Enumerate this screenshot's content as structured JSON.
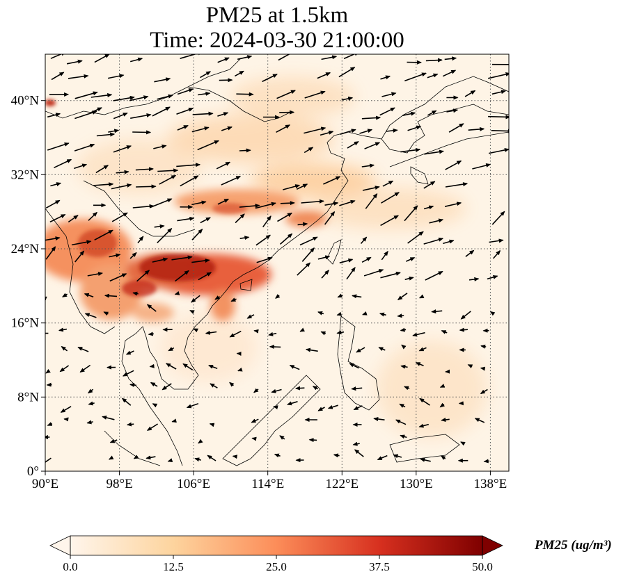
{
  "title": {
    "line1": "PM25 at 1.5km",
    "line2": "Time: 2024-03-30 21:00:00"
  },
  "map": {
    "lon_range": [
      90,
      140
    ],
    "lat_range": [
      0,
      45
    ],
    "x_ticks": [
      "90°E",
      "98°E",
      "106°E",
      "114°E",
      "122°E",
      "130°E",
      "138°E"
    ],
    "y_ticks": [
      "0°",
      "8°N",
      "16°N",
      "24°N",
      "32°N",
      "40°N"
    ],
    "gridlines": true,
    "gridline_style": "dotted"
  },
  "colorbar": {
    "label": "PM25 (ug/m³)",
    "ticks": [
      "0.0",
      "12.5",
      "25.0",
      "37.5",
      "50.0"
    ],
    "range": [
      0,
      50
    ],
    "colormap": [
      "#fff5eb",
      "#fdd49e",
      "#fc8d59",
      "#d7301f",
      "#7f0000"
    ],
    "extend": "both"
  },
  "colors": {
    "background_field": "#fef4e6",
    "coastline": "#000000",
    "wind_arrow": "#000000"
  }
}
